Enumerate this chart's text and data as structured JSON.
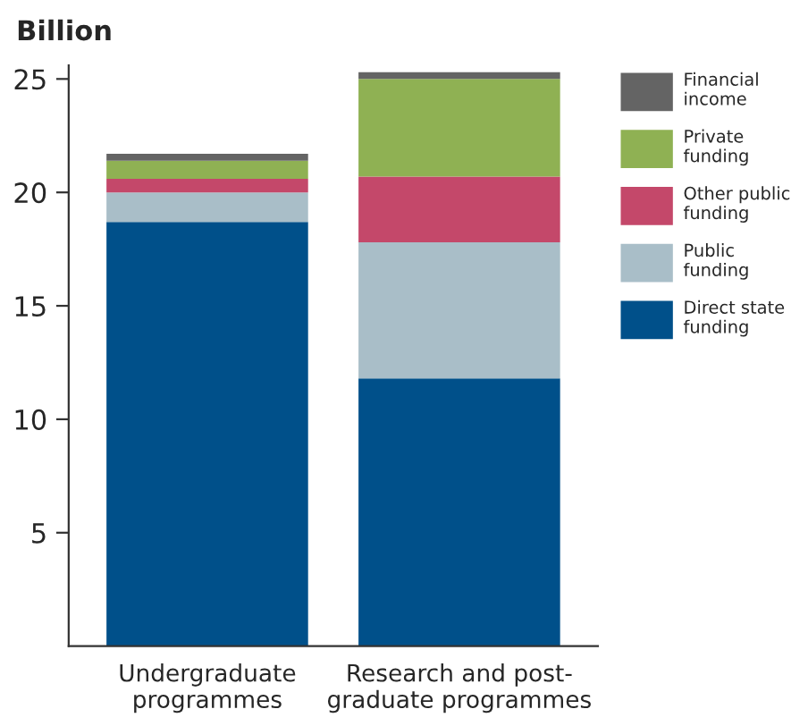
{
  "chart_data": {
    "type": "bar",
    "title": "Billion",
    "stacked": true,
    "categories": [
      "Undergraduate\nprogrammes",
      "Research and post-\ngraduate programmes"
    ],
    "series": [
      {
        "name": "Direct state\nfunding",
        "color": "#00508a",
        "values": [
          18.7,
          11.8
        ]
      },
      {
        "name": "Public\nfunding",
        "color": "#a9bec8",
        "values": [
          1.3,
          6.0
        ]
      },
      {
        "name": "Other public\nfunding",
        "color": "#c4486a",
        "values": [
          0.6,
          2.9
        ]
      },
      {
        "name": "Private\nfunding",
        "color": "#8fb153",
        "values": [
          0.8,
          4.3
        ]
      },
      {
        "name": "Financial\nincome",
        "color": "#646464",
        "values": [
          0.3,
          0.3
        ]
      }
    ],
    "ylim": [
      0,
      25.6
    ],
    "yticks": [
      5,
      10,
      15,
      20,
      25
    ],
    "grid": false,
    "legend": "right"
  }
}
